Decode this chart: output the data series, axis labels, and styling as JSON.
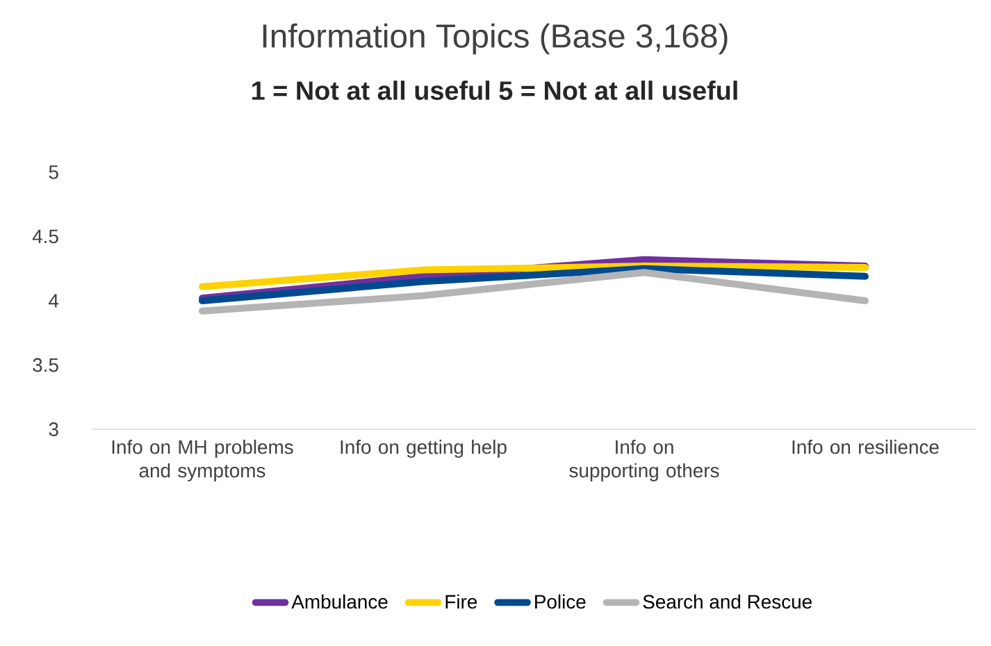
{
  "chart_data": {
    "type": "line",
    "title": "Information Topics (Base 3,168)",
    "subtitle": "**1 = Not at all useful 5 = Not at all useful**",
    "categories": [
      "Info on MH problems and symptoms",
      "Info on getting help",
      "Info on supporting others",
      "Info on resilience"
    ],
    "series": [
      {
        "name": "Ambulance",
        "color": "#7030a0",
        "values": [
          4.02,
          4.19,
          4.32,
          4.27
        ]
      },
      {
        "name": "Fire",
        "color": "#ffd200",
        "values": [
          4.11,
          4.24,
          4.27,
          4.26
        ]
      },
      {
        "name": "Police",
        "color": "#004a8f",
        "values": [
          4.0,
          4.15,
          4.25,
          4.19
        ]
      },
      {
        "name": "Search and Rescue",
        "color": "#b4b4b4",
        "values": [
          3.92,
          4.04,
          4.22,
          4.0
        ]
      }
    ],
    "ylim": [
      3,
      5
    ],
    "yticks": [
      3,
      3.5,
      4,
      4.5,
      5
    ],
    "grid": false,
    "legend": "bottom",
    "marker": "none",
    "line_style": "solid"
  }
}
